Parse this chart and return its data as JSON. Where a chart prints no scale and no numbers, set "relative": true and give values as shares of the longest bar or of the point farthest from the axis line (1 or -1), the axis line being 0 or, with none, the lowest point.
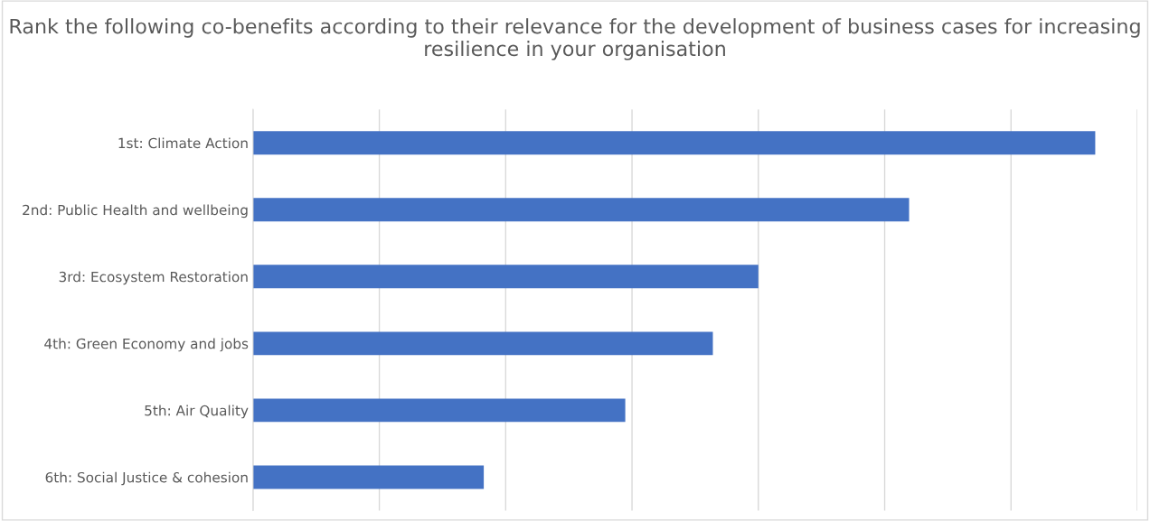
{
  "chart_data": {
    "type": "bar",
    "orientation": "horizontal",
    "relative": true,
    "title": "Rank the following co-benefits according to their relevance for the development of business cases for increasing resilience in your organisation",
    "categories": [
      "1st: Climate Action",
      "2nd: Public Health and wellbeing",
      "3rd: Ecosystem Restoration",
      "4th: Green Economy and jobs",
      "5th: Air Quality",
      "6th: Social Justice & cohesion"
    ],
    "values": [
      1,
      0.779,
      0.6,
      0.546,
      0.442,
      0.274
    ],
    "color": "#4472c4",
    "grid": "x",
    "legend": false
  }
}
